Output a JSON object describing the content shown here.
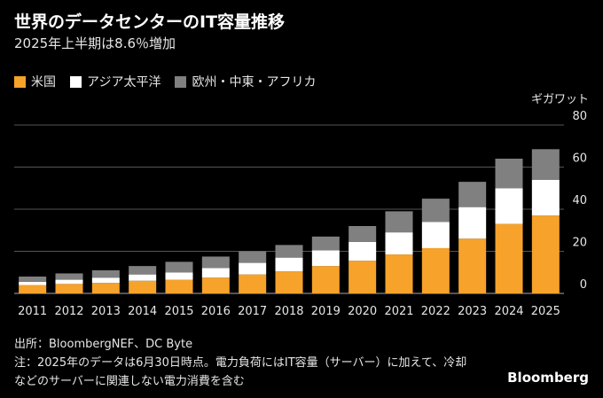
{
  "header": {
    "title": "世界のデータセンターのIT容量推移",
    "subtitle": "2025年上半期は8.6％増加"
  },
  "legend": [
    {
      "label": "米国",
      "color": "#F6A22B",
      "icon": "square-swatch"
    },
    {
      "label": "アジア太平洋",
      "color": "#FFFFFF",
      "icon": "square-swatch"
    },
    {
      "label": "欧州・中東・アフリカ",
      "color": "#808080",
      "icon": "square-swatch"
    }
  ],
  "unit_label": "ギガワット",
  "footer": {
    "source": "出所：BloombergNEF、DC Byte",
    "note_line1": "注：2025年のデータは6月30日時点。電力負荷にはIT容量（サーバー）に加えて、冷却",
    "note_line2": "などのサーバーに関連しない電力消費を含む",
    "brand": "Bloomberg"
  },
  "chart_data": {
    "type": "bar",
    "stacked": true,
    "categories": [
      "2011",
      "2012",
      "2013",
      "2014",
      "2015",
      "2016",
      "2017",
      "2018",
      "2019",
      "2020",
      "2021",
      "2022",
      "2023",
      "2024",
      "2025"
    ],
    "series": [
      {
        "name": "米国",
        "color": "#F6A22B",
        "values": [
          4,
          4.5,
          5,
          6,
          6.5,
          7.5,
          9,
          10.5,
          13,
          15.5,
          18.5,
          21.5,
          26,
          33,
          37
        ]
      },
      {
        "name": "アジア太平洋",
        "color": "#FFFFFF",
        "values": [
          1.5,
          2,
          2.5,
          3,
          3.5,
          4.5,
          5.5,
          6.5,
          7.5,
          9,
          10.5,
          12.5,
          15,
          17,
          17
        ]
      },
      {
        "name": "欧州・中東・アフリカ",
        "color": "#808080",
        "values": [
          2.5,
          3,
          3.5,
          4,
          5,
          5.5,
          5.5,
          6,
          6.5,
          7.5,
          10,
          11,
          12,
          14,
          14.5
        ]
      }
    ],
    "ylim": [
      0,
      80
    ],
    "yticks": [
      0,
      20,
      40,
      60,
      80
    ],
    "ylabel": "ギガワット",
    "grid": true,
    "axis_side": "right"
  }
}
